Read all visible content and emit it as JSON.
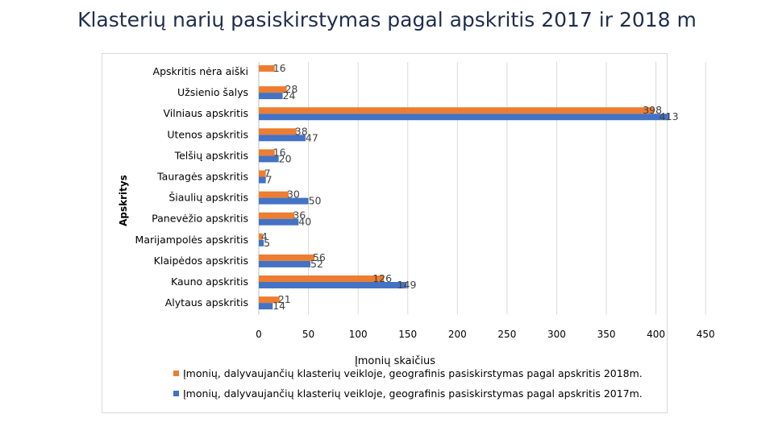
{
  "title": "Klasterių narių pasiskirstymas pagal apskritis 2017 ir 2018 m",
  "chart_data": {
    "type": "bar",
    "orientation": "horizontal",
    "categories": [
      "Apskritis nėra aiški",
      "Užsienio šalys",
      "Vilniaus apskritis",
      "Utenos apskritis",
      "Telšių apskritis",
      "Tauragės apskritis",
      "Šiaulių apskritis",
      "Panevėžio apskritis",
      "Marijampolės apskritis",
      "Klaipėdos apskritis",
      "Kauno apskritis",
      "Alytaus apskritis"
    ],
    "series": [
      {
        "name": "Įmonių, dalyvaujančių klasterių veikloje, geografinis pasiskirstymas pagal apskritis 2018m.",
        "color": "#ed7d31",
        "values": [
          16,
          28,
          398,
          38,
          16,
          7,
          30,
          36,
          4,
          56,
          126,
          21
        ]
      },
      {
        "name": "Įmonių, dalyvaujančių klasterių veikloje, geografinis pasiskirstymas pagal apskritis 2017m.",
        "color": "#4472c4",
        "values": [
          null,
          24,
          413,
          47,
          20,
          7,
          50,
          40,
          5,
          52,
          149,
          14
        ]
      }
    ],
    "xlim": [
      0,
      450
    ],
    "xticks": [
      0,
      50,
      100,
      150,
      200,
      250,
      300,
      350,
      400,
      450
    ],
    "xlabel": "Įmonių skaičius",
    "ylabel": "Apskritys",
    "grid": true,
    "legend": "bottom"
  }
}
